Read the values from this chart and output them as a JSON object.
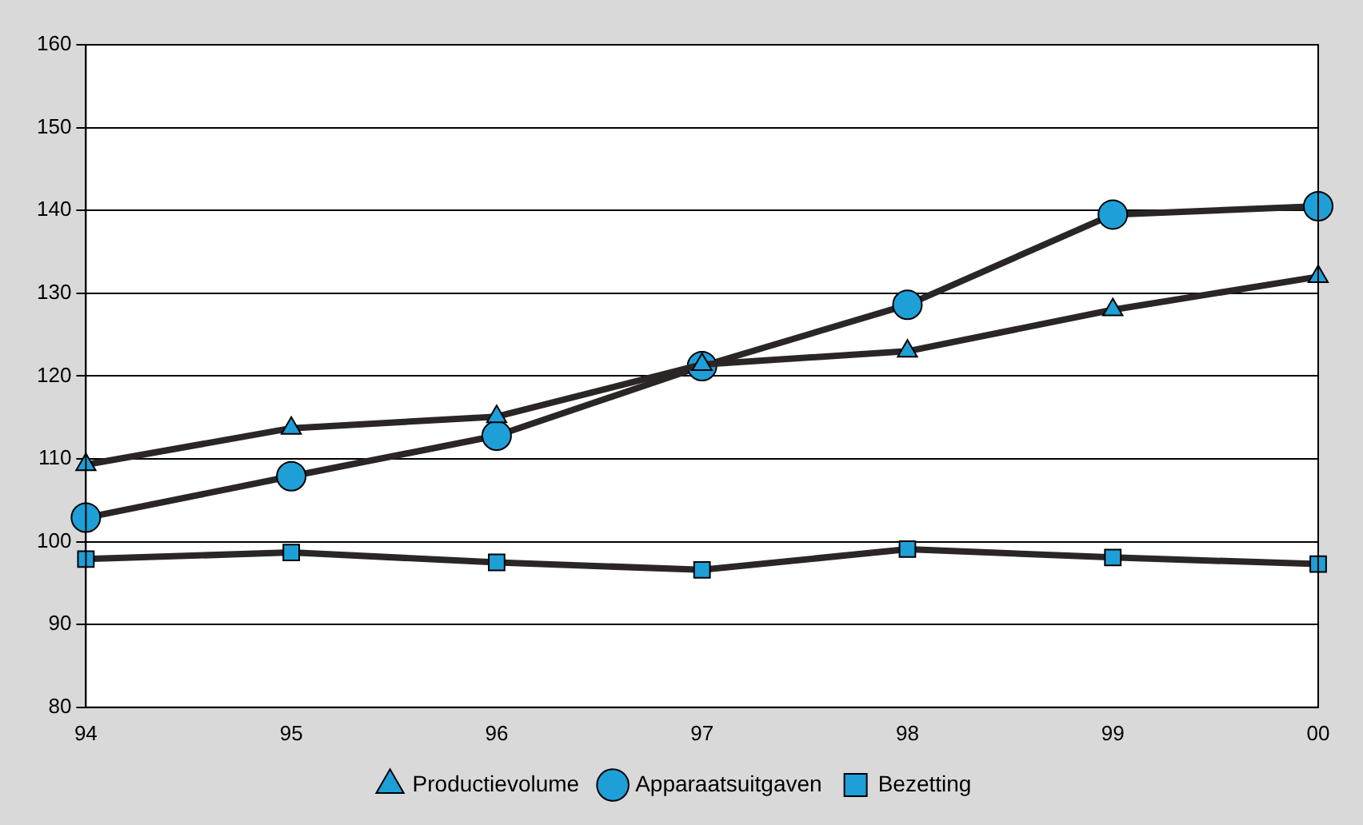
{
  "chart_data": {
    "type": "line",
    "categories": [
      "94",
      "95",
      "96",
      "97",
      "98",
      "99",
      "00"
    ],
    "series": [
      {
        "name": "Productievolume",
        "color": "#1e9fd8",
        "marker": "triangle",
        "values": [
          109.3,
          113.7,
          115.1,
          121.4,
          123,
          128,
          132
        ]
      },
      {
        "name": "Apparaatsuitgaven",
        "color": "#1e9fd8",
        "marker": "circle",
        "values": [
          102.9,
          107.9,
          112.8,
          121.2,
          128.6,
          139.5,
          140.5
        ]
      },
      {
        "name": "Bezetting",
        "color": "#1e9fd8",
        "marker": "square",
        "values": [
          97.9,
          98.7,
          97.5,
          96.6,
          99.1,
          98.1,
          97.3
        ]
      }
    ],
    "ylim": [
      80,
      160
    ],
    "yticks": [
      80,
      90,
      100,
      110,
      120,
      130,
      140,
      150,
      160
    ],
    "grid": "y",
    "legend": "bottom",
    "line_style": "solid"
  }
}
